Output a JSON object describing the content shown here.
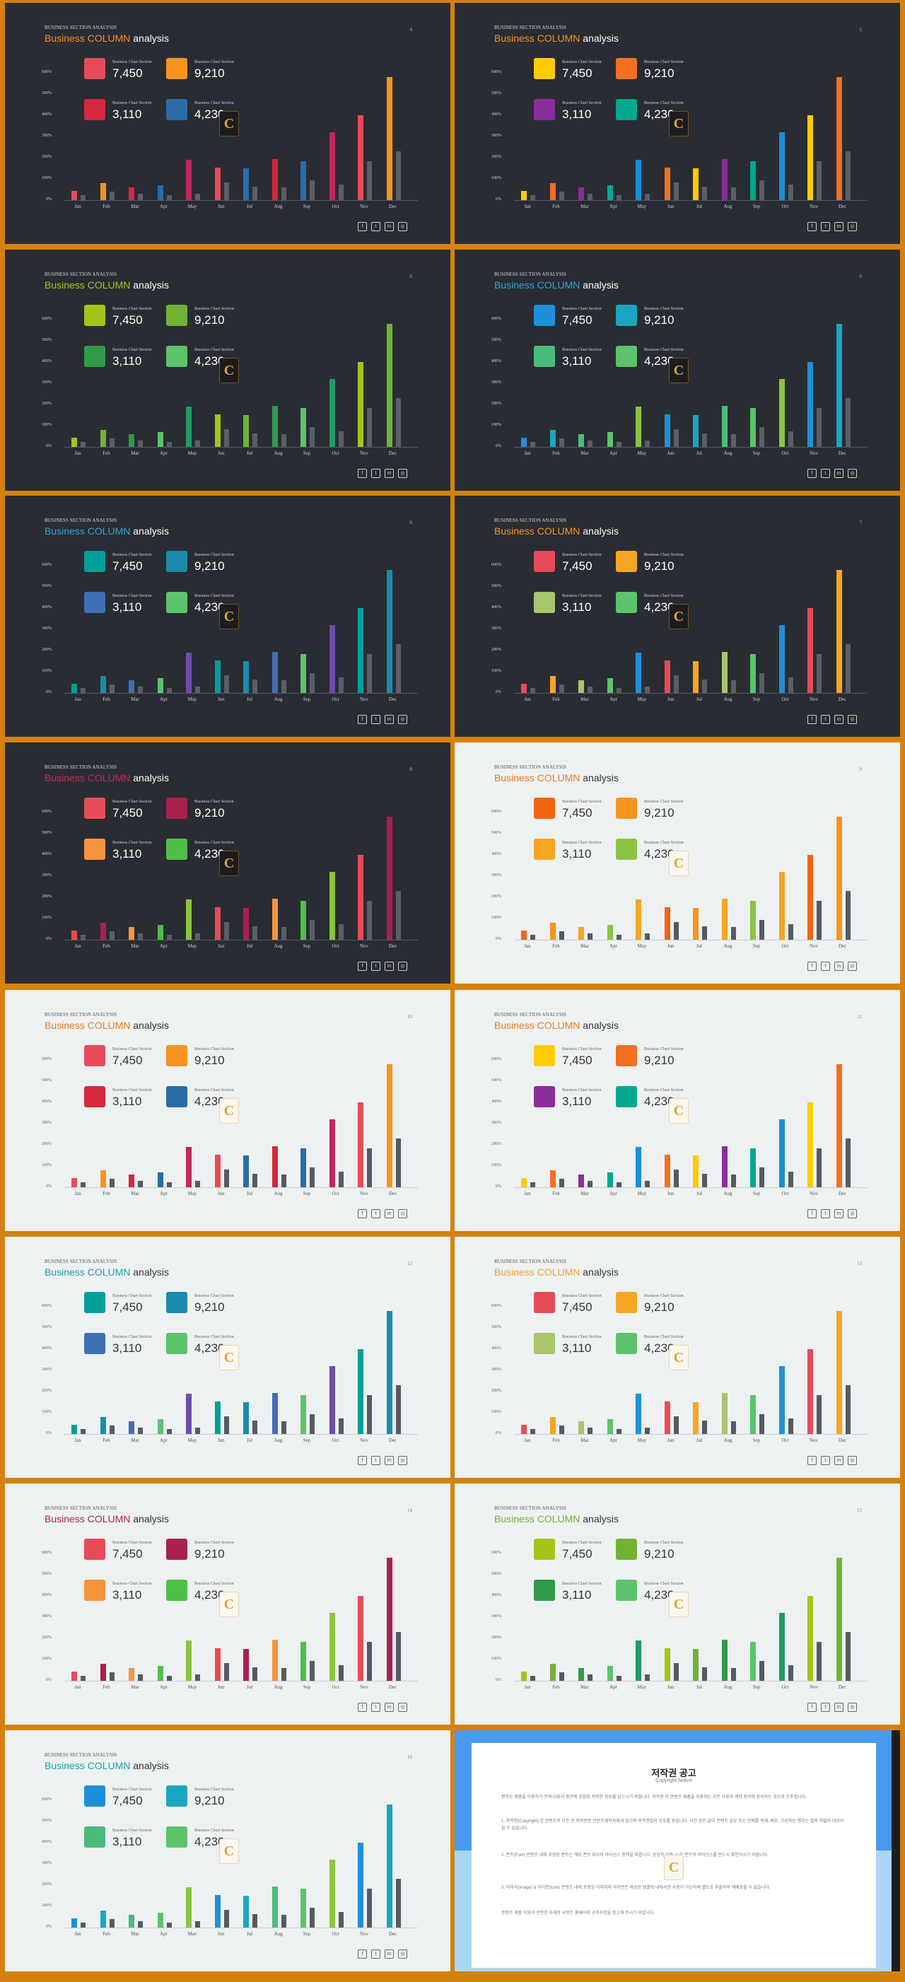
{
  "common": {
    "kicker": "BUSINESS SECTION ANALYSIS",
    "title_business": "Business ",
    "title_column": "COLUMN",
    "title_analysis": " analysis",
    "stat_label": "Business Chart Section",
    "stats": [
      "7,450",
      "9,210",
      "3,110",
      "4,230"
    ],
    "logo_letter": "C",
    "social": [
      "f",
      "t",
      "in",
      "◎"
    ]
  },
  "chart_data": {
    "type": "bar",
    "categories": [
      "Jan",
      "Feb",
      "Mar",
      "Apr",
      "May",
      "Jun",
      "Jul",
      "Aug",
      "Sep",
      "Oct",
      "Nov",
      "Dec"
    ],
    "ytick_labels": [
      "0%",
      "100%",
      "200%",
      "300%",
      "400%",
      "500%",
      "600%"
    ],
    "ylim": [
      0,
      600
    ],
    "series": [
      {
        "values": [
          42,
          80,
          60,
          70,
          190,
          155,
          150,
          195,
          185,
          320,
          400,
          580
        ]
      },
      {
        "values": [
          25,
          40,
          30,
          25,
          30,
          85,
          65,
          60,
          95,
          75,
          185,
          230
        ]
      }
    ],
    "grid": false
  },
  "slides": [
    {
      "page": "4",
      "theme": "dark",
      "title_color": "#f7931e",
      "series2": "#5b5e66",
      "stat_colors": [
        "#e84b58",
        "#f7931e",
        "#d6283e",
        "#2a6ca8"
      ],
      "bar_colors": [
        "#e84b58",
        "#f7931e",
        "#d6283e",
        "#2a6ca8",
        "#c0285e",
        "#e84b58",
        "#2a6ca8",
        "#d6283e",
        "#2a6ca8",
        "#c0285e",
        "#e84b58",
        "#f7931e"
      ]
    },
    {
      "page": "5",
      "theme": "dark",
      "title_color": "#f7931e",
      "series2": "#5b5e66",
      "stat_colors": [
        "#ffcc00",
        "#f36f21",
        "#8b2c9c",
        "#00a88e"
      ],
      "bar_colors": [
        "#ffcc00",
        "#f36f21",
        "#8b2c9c",
        "#00a88e",
        "#1a8fd8",
        "#f36f21",
        "#ffcc00",
        "#8b2c9c",
        "#00a88e",
        "#1a8fd8",
        "#ffcc00",
        "#f36f21"
      ]
    },
    {
      "page": "6",
      "theme": "dark",
      "title_color": "#a2c617",
      "series2": "#5b5e66",
      "stat_colors": [
        "#a2c617",
        "#72b233",
        "#2f9b4a",
        "#5cc36b"
      ],
      "bar_colors": [
        "#a2c617",
        "#72b233",
        "#2f9b4a",
        "#5cc36b",
        "#1e9b66",
        "#a2c617",
        "#72b233",
        "#2f9b4a",
        "#5cc36b",
        "#1e9b66",
        "#a2c617",
        "#72b233"
      ]
    },
    {
      "page": "6",
      "theme": "dark",
      "title_color": "#2aa8d9",
      "series2": "#5b5e66",
      "stat_colors": [
        "#1e90d8",
        "#1aa6c2",
        "#4bbb7c",
        "#5cc36b"
      ],
      "bar_colors": [
        "#1e90d8",
        "#1aa6c2",
        "#4bbb7c",
        "#5cc36b",
        "#8bc53f",
        "#1e90d8",
        "#1aa6c2",
        "#4bbb7c",
        "#5cc36b",
        "#8bc53f",
        "#1e90d8",
        "#1aa6c2"
      ]
    },
    {
      "page": "6",
      "theme": "dark",
      "title_color": "#2aa8d9",
      "series2": "#5b5e66",
      "stat_colors": [
        "#00a09a",
        "#1a8cab",
        "#3f6fb5",
        "#5cc36b"
      ],
      "bar_colors": [
        "#00a09a",
        "#1a8cab",
        "#3f6fb5",
        "#5cc36b",
        "#6b4fa8",
        "#00a09a",
        "#1a8cab",
        "#3f6fb5",
        "#5cc36b",
        "#6b4fa8",
        "#00a09a",
        "#1a8cab"
      ]
    },
    {
      "page": "7",
      "theme": "dark",
      "title_color": "#f7931e",
      "series2": "#5b5e66",
      "stat_colors": [
        "#e84b58",
        "#f5a623",
        "#a8c56b",
        "#5cc36b"
      ],
      "bar_colors": [
        "#e84b58",
        "#f5a623",
        "#a8c56b",
        "#5cc36b",
        "#1e90d8",
        "#e84b58",
        "#f5a623",
        "#a8c56b",
        "#5cc36b",
        "#1e90d8",
        "#e84b58",
        "#f5a623"
      ]
    },
    {
      "page": "8",
      "theme": "dark",
      "title_color": "#c0285e",
      "series2": "#5b5e66",
      "stat_colors": [
        "#e84b58",
        "#a8214f",
        "#f7943c",
        "#4fbf48"
      ],
      "bar_colors": [
        "#e84b58",
        "#a8214f",
        "#f7943c",
        "#4fbf48",
        "#8bc53f",
        "#e84b58",
        "#a8214f",
        "#f7943c",
        "#4fbf48",
        "#8bc53f",
        "#e84b58",
        "#a8214f"
      ]
    },
    {
      "page": "9",
      "theme": "light",
      "title_color": "#f07c1a",
      "series2": "#555a63",
      "stat_colors": [
        "#f36410",
        "#f7941d",
        "#f5a623",
        "#8bc53f"
      ],
      "bar_colors": [
        "#f36410",
        "#f7941d",
        "#f5a623",
        "#8bc53f",
        "#f5a623",
        "#f36410",
        "#f7941d",
        "#f5a623",
        "#8bc53f",
        "#f5a623",
        "#f36410",
        "#f7941d"
      ]
    },
    {
      "page": "10",
      "theme": "light",
      "title_color": "#f07c1a",
      "series2": "#555a63",
      "stat_colors": [
        "#e84b58",
        "#f7931e",
        "#d6283e",
        "#2a6ca8"
      ],
      "bar_colors": [
        "#e84b58",
        "#f7931e",
        "#d6283e",
        "#2a6ca8",
        "#c0285e",
        "#e84b58",
        "#2a6ca8",
        "#d6283e",
        "#2a6ca8",
        "#c0285e",
        "#e84b58",
        "#f7931e"
      ]
    },
    {
      "page": "11",
      "theme": "light",
      "title_color": "#f07c1a",
      "series2": "#555a63",
      "stat_colors": [
        "#ffcc00",
        "#f36f21",
        "#8b2c9c",
        "#00a88e"
      ],
      "bar_colors": [
        "#ffcc00",
        "#f36f21",
        "#8b2c9c",
        "#00a88e",
        "#1a8fd8",
        "#f36f21",
        "#ffcc00",
        "#8b2c9c",
        "#00a88e",
        "#1a8fd8",
        "#ffcc00",
        "#f36f21"
      ]
    },
    {
      "page": "12",
      "theme": "light",
      "title_color": "#1a9fb5",
      "series2": "#555a63",
      "stat_colors": [
        "#00a09a",
        "#1a8cab",
        "#3f6fb5",
        "#5cc36b"
      ],
      "bar_colors": [
        "#00a09a",
        "#1a8cab",
        "#3f6fb5",
        "#5cc36b",
        "#6b4fa8",
        "#00a09a",
        "#1a8cab",
        "#3f6fb5",
        "#5cc36b",
        "#6b4fa8",
        "#00a09a",
        "#1a8cab"
      ]
    },
    {
      "page": "13",
      "theme": "light",
      "title_color": "#f5a623",
      "series2": "#555a63",
      "stat_colors": [
        "#e84b58",
        "#f5a623",
        "#a8c56b",
        "#5cc36b"
      ],
      "bar_colors": [
        "#e84b58",
        "#f5a623",
        "#a8c56b",
        "#5cc36b",
        "#1e90d8",
        "#e84b58",
        "#f5a623",
        "#a8c56b",
        "#5cc36b",
        "#1e90d8",
        "#e84b58",
        "#f5a623"
      ]
    },
    {
      "page": "14",
      "theme": "light",
      "title_color": "#b0244f",
      "series2": "#555a63",
      "stat_colors": [
        "#e84b58",
        "#a8214f",
        "#f7943c",
        "#4fbf48"
      ],
      "bar_colors": [
        "#e84b58",
        "#a8214f",
        "#f7943c",
        "#4fbf48",
        "#8bc53f",
        "#e84b58",
        "#a8214f",
        "#f7943c",
        "#4fbf48",
        "#8bc53f",
        "#e84b58",
        "#a8214f"
      ]
    },
    {
      "page": "15",
      "theme": "light",
      "title_color": "#72b233",
      "series2": "#555a63",
      "stat_colors": [
        "#a2c617",
        "#72b233",
        "#2f9b4a",
        "#5cc36b"
      ],
      "bar_colors": [
        "#a2c617",
        "#72b233",
        "#2f9b4a",
        "#5cc36b",
        "#1e9b66",
        "#a2c617",
        "#72b233",
        "#2f9b4a",
        "#5cc36b",
        "#1e9b66",
        "#a2c617",
        "#72b233"
      ]
    },
    {
      "page": "16",
      "theme": "light",
      "title_color": "#1a9fb5",
      "series2": "#555a63",
      "stat_colors": [
        "#1e90d8",
        "#1aa6c2",
        "#4bbb7c",
        "#5cc36b"
      ],
      "bar_colors": [
        "#1e90d8",
        "#1aa6c2",
        "#4bbb7c",
        "#5cc36b",
        "#8bc53f",
        "#1e90d8",
        "#1aa6c2",
        "#4bbb7c",
        "#5cc36b",
        "#8bc53f",
        "#1e90d8",
        "#1aa6c2"
      ]
    }
  ],
  "copyright": {
    "title": "저작권 공고",
    "subtitle": "Copyright Notice",
    "paragraphs": [
      "편하는 제품을 이용하기 전에 다음의 중간에 포함된 저작권 정보를 읽으시기 바랍니다. 저작권 이 콘텐츠 제품을 이용하는 모든 사용자 계약 동의에 동의하는 것으로 간주됩니다.",
      "1. 저작권(Copyright) 본 콘텐츠의 모든 권 저작권은 콘텐츠제작자에게 있으며 저작권법의 보호를 받습니다. 사전 승인 없이 콘텐츠 일부 또는 전체를 복제, 배포, 가공하는 행위는 법적 처벌의 대상이 될 수 있습니다.",
      "2. 폰트(Font) 콘텐츠 내에 포함된 폰트는 해당 폰트 회사의 라이선스 정책을 따릅니다. 상업적 이용 시 각 폰트의 라이선스를 반드시 확인하시기 바랍니다.",
      "3. 이미지(Image) & 아이콘(Icon) 콘텐츠 내에 포함된 이미지와 아이콘은 제공된 템플릿 내에서만 사용이 가능하며 별도로 추출하여 재배포할 수 없습니다.",
      "콘텐츠 제품 이용과 관련한 자세한 사항은 홈페이지 공지사항을 참고해 주시기 바랍니다."
    ]
  }
}
